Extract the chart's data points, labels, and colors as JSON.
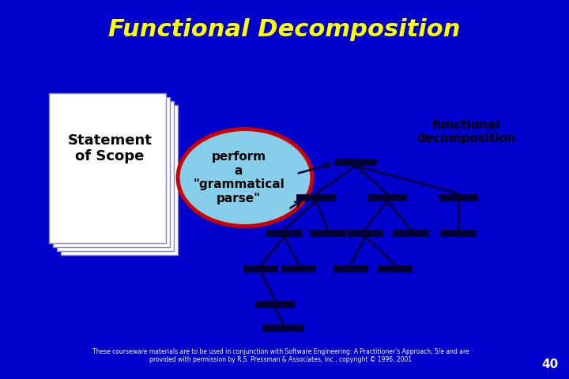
{
  "title": "Functional Decomposition",
  "title_color": "#FFFF00",
  "title_fontsize": 22,
  "bg_color": "#0000CC",
  "statement_text": "Statement\nof Scope",
  "ellipse_text": "perform\na\n\"grammatical\nparse\"",
  "fd_text": "functional\ndecomposition",
  "footer_line1": "These courseware materials are to be used in conjunction with Software Engineering: A Practitioner's Approach, 5/e and are",
  "footer_line2": "provided with permission by R.S. Pressman & Associates, Inc., copyright © 1996, 2001",
  "page_num": "40",
  "ellipse_color": "#87CEEB",
  "ellipse_outline": "#CC0000",
  "text_color": "#000000",
  "white": "#FFFFFF",
  "bar_color": "#000033",
  "line_color": "#000033"
}
